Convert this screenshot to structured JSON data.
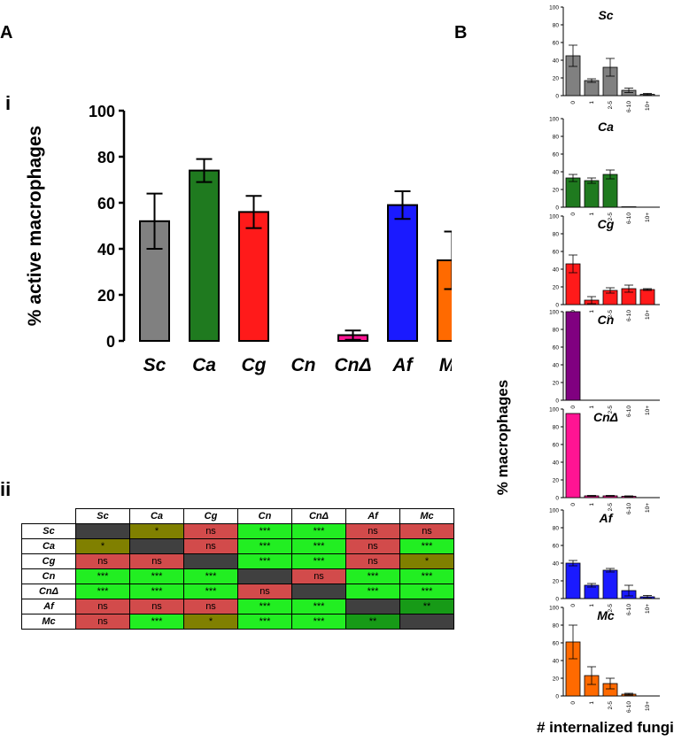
{
  "panels": {
    "a": "A",
    "b": "B",
    "i": "i",
    "ii": "ii"
  },
  "colors": {
    "Sc": "#808080",
    "Ca": "#1f7a1f",
    "Cg": "#ff1a1a",
    "Cn": "#800080",
    "CnD": "#ff1493",
    "Af": "#1a1aff",
    "Mc": "#ff6a00",
    "sig_green": "#22ee22",
    "sig_dark_green": "#179a17",
    "sig_olive": "#808000",
    "ns_red": "#d24b4b",
    "diag": "#404040"
  },
  "chart_data": [
    {
      "type": "bar",
      "title": "",
      "xlabel": "",
      "ylabel": "% active macrophages",
      "ylim": [
        0,
        100
      ],
      "yticks": [
        "0",
        "20",
        "40",
        "60",
        "80",
        "100"
      ],
      "categories": [
        "Sc",
        "Ca",
        "Cg",
        "Cn",
        "CnΔ",
        "Af",
        "Mc"
      ],
      "color_keys": [
        "Sc",
        "Ca",
        "Cg",
        "Cn",
        "CnD",
        "Af",
        "Mc"
      ],
      "values": [
        52,
        74,
        56,
        0,
        2.5,
        59,
        35
      ],
      "errors": [
        12,
        5,
        7,
        0,
        2,
        6,
        12.5
      ]
    },
    {
      "type": "table",
      "columns": [
        "Sc",
        "Ca",
        "Cg",
        "Cn",
        "CnΔ",
        "Af",
        "Mc"
      ],
      "rows": [
        {
          "label": "Sc",
          "cells": [
            "",
            "*",
            "ns",
            "***",
            "***",
            "ns",
            "ns"
          ],
          "shades": [
            "diag",
            "olive",
            "red",
            "green",
            "green",
            "red",
            "red"
          ]
        },
        {
          "label": "Ca",
          "cells": [
            "*",
            "",
            "ns",
            "***",
            "***",
            "ns",
            "***"
          ],
          "shades": [
            "olive",
            "diag",
            "red",
            "green",
            "green",
            "red",
            "green"
          ]
        },
        {
          "label": "Cg",
          "cells": [
            "ns",
            "ns",
            "",
            "***",
            "***",
            "ns",
            "*"
          ],
          "shades": [
            "red",
            "red",
            "diag",
            "green",
            "green",
            "red",
            "olive"
          ]
        },
        {
          "label": "Cn",
          "cells": [
            "***",
            "***",
            "***",
            "",
            "ns",
            "***",
            "***"
          ],
          "shades": [
            "green",
            "green",
            "green",
            "diag",
            "red",
            "green",
            "green"
          ]
        },
        {
          "label": "CnΔ",
          "cells": [
            "***",
            "***",
            "***",
            "ns",
            "",
            "***",
            "***"
          ],
          "shades": [
            "green",
            "green",
            "green",
            "red",
            "diag",
            "green",
            "green"
          ]
        },
        {
          "label": "Af",
          "cells": [
            "ns",
            "ns",
            "ns",
            "***",
            "***",
            "",
            "**"
          ],
          "shades": [
            "red",
            "red",
            "red",
            "green",
            "green",
            "diag",
            "dgreen"
          ]
        },
        {
          "label": "Mc",
          "cells": [
            "ns",
            "***",
            "*",
            "***",
            "***",
            "**",
            ""
          ],
          "shades": [
            "red",
            "green",
            "olive",
            "green",
            "green",
            "dgreen",
            "diag"
          ]
        }
      ]
    },
    {
      "type": "bar",
      "title": "Sc",
      "color_key": "Sc",
      "categories": [
        "0",
        "1",
        "2-5",
        "6-10",
        "10+"
      ],
      "values": [
        45,
        17,
        32,
        6,
        1.5
      ],
      "errors": [
        12,
        2,
        10,
        2.5,
        1
      ],
      "ylim": [
        0,
        100
      ],
      "yticks": [
        "0",
        "20",
        "40",
        "60",
        "80",
        "100"
      ]
    },
    {
      "type": "bar",
      "title": "Ca",
      "color_key": "Ca",
      "categories": [
        "0",
        "1",
        "2-5",
        "6-10",
        "10+"
      ],
      "values": [
        33,
        30,
        37,
        0.5,
        0
      ],
      "errors": [
        4,
        3,
        5,
        0,
        0
      ],
      "ylim": [
        0,
        100
      ],
      "yticks": [
        "0",
        "20",
        "40",
        "60",
        "80",
        "100"
      ]
    },
    {
      "type": "bar",
      "title": "Cg",
      "color_key": "Cg",
      "categories": [
        "0",
        "1",
        "2-5",
        "6-10",
        "10+"
      ],
      "values": [
        46,
        5,
        16,
        18,
        17
      ],
      "errors": [
        10,
        4,
        3,
        4,
        1
      ],
      "ylim": [
        0,
        100
      ],
      "yticks": [
        "0",
        "20",
        "40",
        "60",
        "80",
        "100"
      ]
    },
    {
      "type": "bar",
      "title": "Cn",
      "color_key": "Cn",
      "categories": [
        "0",
        "1",
        "2-5",
        "6-10",
        "10+"
      ],
      "values": [
        100,
        0,
        0,
        0,
        0
      ],
      "errors": [
        0,
        0,
        0,
        0,
        0
      ],
      "ylim": [
        0,
        100
      ],
      "yticks": [
        "0",
        "20",
        "40",
        "60",
        "80",
        "100"
      ]
    },
    {
      "type": "bar",
      "title": "CnΔ",
      "color_key": "CnD",
      "categories": [
        "0",
        "1",
        "2-5",
        "6-10",
        "10+"
      ],
      "values": [
        95,
        2,
        2,
        1.5,
        0
      ],
      "errors": [
        0,
        0.5,
        0.5,
        0.5,
        0
      ],
      "ylim": [
        0,
        100
      ],
      "yticks": [
        "0",
        "20",
        "40",
        "60",
        "80",
        "100"
      ]
    },
    {
      "type": "bar",
      "title": "Af",
      "color_key": "Af",
      "categories": [
        "0",
        "1",
        "2-5",
        "6-10",
        "10+"
      ],
      "values": [
        40,
        15,
        32,
        9,
        2
      ],
      "errors": [
        3,
        2,
        2,
        6,
        1.5
      ],
      "ylim": [
        0,
        100
      ],
      "yticks": [
        "0",
        "20",
        "40",
        "60",
        "80",
        "100"
      ]
    },
    {
      "type": "bar",
      "title": "Mc",
      "color_key": "Mc",
      "categories": [
        "0",
        "1",
        "2-5",
        "6-10",
        "10+"
      ],
      "values": [
        61,
        23,
        14,
        2,
        0
      ],
      "errors": [
        19,
        10,
        6,
        1,
        0
      ],
      "ylim": [
        0,
        100
      ],
      "yticks": [
        "0",
        "20",
        "40",
        "60",
        "80",
        "100"
      ]
    }
  ],
  "panel_b_axes": {
    "ylabel": "% macrophages",
    "xlabel": "# internalized fungi"
  }
}
